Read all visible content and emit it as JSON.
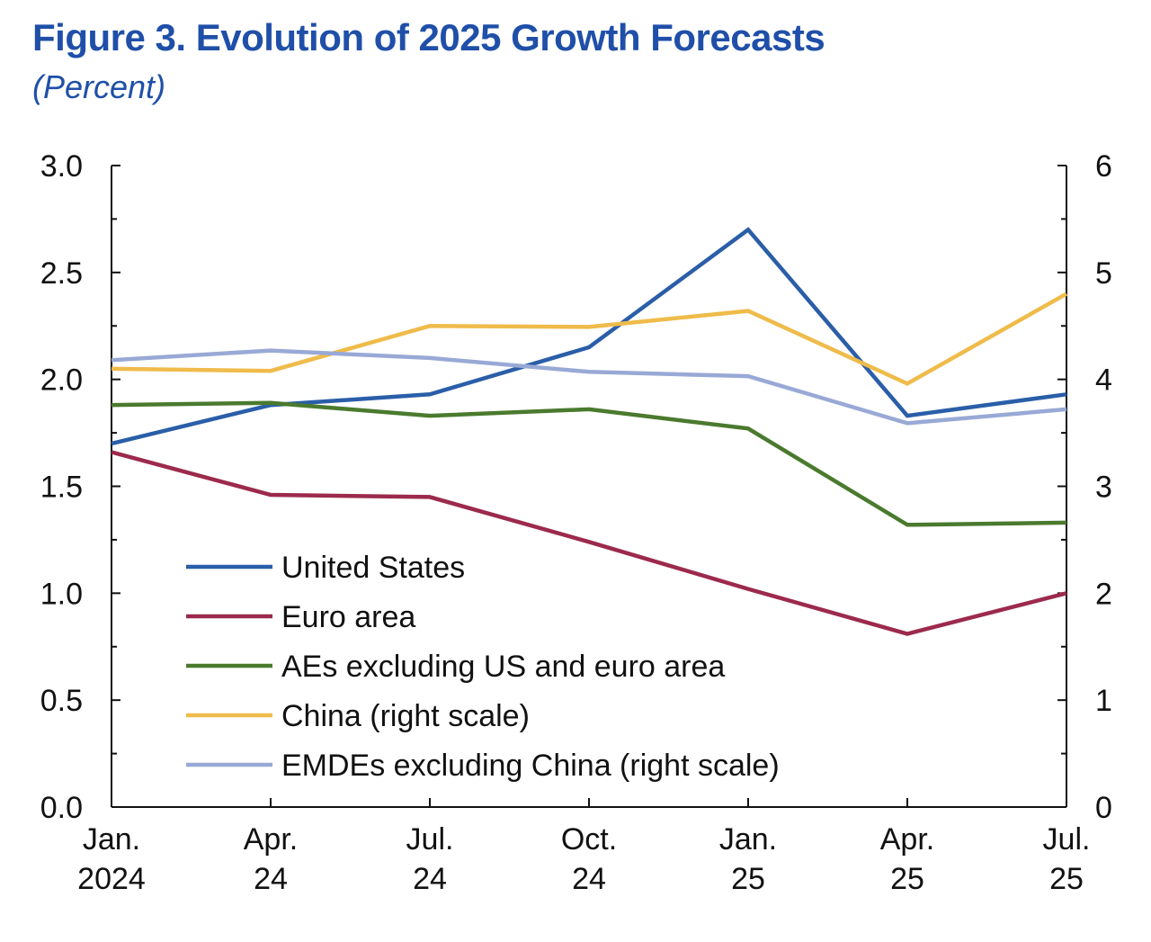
{
  "title": "Figure 3.  Evolution of 2025 Growth Forecasts",
  "subtitle": "(Percent)",
  "chart_data": {
    "type": "line",
    "title": "Figure 3.  Evolution of 2025 Growth Forecasts",
    "subtitle": "(Percent)",
    "categories": [
      [
        "Jan.",
        "2024"
      ],
      [
        "Apr.",
        "24"
      ],
      [
        "Jul.",
        "24"
      ],
      [
        "Oct.",
        "24"
      ],
      [
        "Jan.",
        "25"
      ],
      [
        "Apr.",
        "25"
      ],
      [
        "Jul.",
        "25"
      ]
    ],
    "left_axis": {
      "ylim": [
        0,
        3
      ],
      "ticks": [
        "0.0",
        "0.5",
        "1.0",
        "1.5",
        "2.0",
        "2.5",
        "3.0"
      ]
    },
    "right_axis": {
      "ylim": [
        0,
        6
      ],
      "ticks": [
        "0",
        "1",
        "2",
        "3",
        "4",
        "5",
        "6"
      ]
    },
    "grid": false,
    "legend_position": "bottom-left",
    "series": [
      {
        "name": "United States",
        "axis": "left",
        "color": "#2a5ea8",
        "values": [
          1.7,
          1.88,
          1.93,
          2.15,
          2.7,
          1.83,
          1.93
        ]
      },
      {
        "name": "Euro area",
        "axis": "left",
        "color": "#9c2a4c",
        "values": [
          1.66,
          1.46,
          1.45,
          1.24,
          1.02,
          0.81,
          1.0
        ]
      },
      {
        "name": "AEs excluding US and euro area",
        "axis": "left",
        "color": "#4a7a2e",
        "values": [
          1.88,
          1.89,
          1.83,
          1.86,
          1.77,
          1.32,
          1.33
        ]
      },
      {
        "name": "China (right scale)",
        "axis": "right",
        "color": "#efbb4a",
        "values": [
          4.1,
          4.08,
          4.5,
          4.49,
          4.64,
          3.96,
          4.8
        ]
      },
      {
        "name": "EMDEs excluding China (right scale)",
        "axis": "right",
        "color": "#99a9d6",
        "values": [
          4.18,
          4.27,
          4.2,
          4.07,
          4.03,
          3.59,
          3.72
        ]
      }
    ]
  }
}
